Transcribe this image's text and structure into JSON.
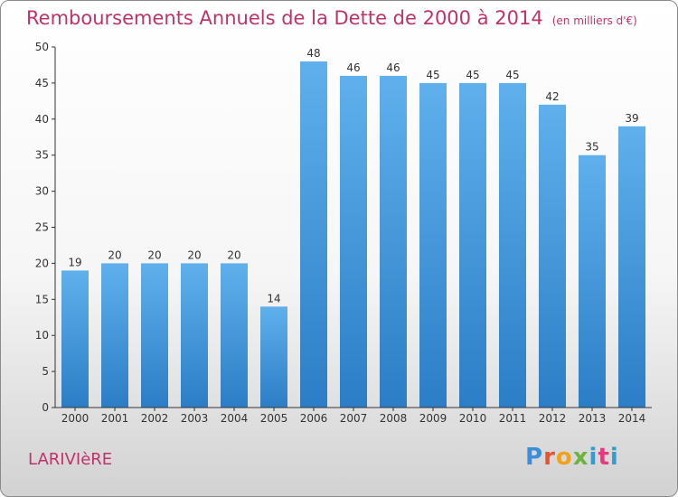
{
  "chart_data": {
    "type": "bar",
    "title": "Remboursements Annuels de la Dette de 2000 à 2014",
    "unit_label": "(en milliers d'€)",
    "categories": [
      "2000",
      "2001",
      "2002",
      "2003",
      "2004",
      "2005",
      "2006",
      "2007",
      "2008",
      "2009",
      "2010",
      "2011",
      "2012",
      "2013",
      "2014"
    ],
    "values": [
      19,
      20,
      20,
      20,
      20,
      14,
      48,
      46,
      46,
      45,
      45,
      45,
      42,
      35,
      39
    ],
    "ylim": [
      0,
      50
    ],
    "yticks": [
      0,
      5,
      10,
      15,
      20,
      25,
      30,
      35,
      40,
      45,
      50
    ],
    "xlabel": "",
    "ylabel": "",
    "grid": false
  },
  "footer": {
    "commune": "LARIVIèRE",
    "logo": "Proxiti"
  },
  "colors": {
    "title": "#c1326a",
    "bar_light": "#5fb0ec",
    "bar_dark": "#2b7ec6",
    "axis": "#333333"
  }
}
